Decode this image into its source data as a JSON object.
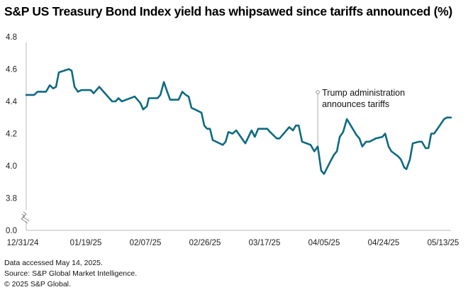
{
  "title": "S&P US Treasury Bond Index yield has whipsawed since tariffs announced (%)",
  "footer": {
    "line1": "Data accessed May 14, 2025.",
    "line2": "Source: S&P Global Market Intelligence.",
    "line3": "© 2025 S&P Global."
  },
  "chart_data": {
    "type": "line",
    "title": "S&P US Treasury Bond Index yield has whipsawed since tariffs announced (%)",
    "xlabel": "",
    "ylabel": "",
    "x_unit": "days since 12/31/24",
    "x_range": [
      0,
      135.5
    ],
    "ylim": [
      3.7,
      4.8
    ],
    "axis_break": true,
    "grid": false,
    "legend": "none",
    "y_ticks": [
      {
        "value": 4.8,
        "label": "4.8"
      },
      {
        "value": 4.6,
        "label": "4.6"
      },
      {
        "value": 4.4,
        "label": "4.4"
      },
      {
        "value": 4.2,
        "label": "4.2"
      },
      {
        "value": 4.0,
        "label": "4.0"
      },
      {
        "value": 3.8,
        "label": "3.8"
      },
      {
        "value": 3.7,
        "label": "0.0"
      }
    ],
    "x_ticks": [
      {
        "day": 0,
        "label": "12/31/24"
      },
      {
        "day": 19,
        "label": "01/19/25"
      },
      {
        "day": 38,
        "label": "02/07/25"
      },
      {
        "day": 57,
        "label": "02/26/25"
      },
      {
        "day": 76,
        "label": "03/17/25"
      },
      {
        "day": 95,
        "label": "04/05/25"
      },
      {
        "day": 114,
        "label": "04/24/25"
      },
      {
        "day": 133,
        "label": "05/13/25"
      }
    ],
    "series": [
      {
        "name": "S&P US Treasury Bond Index yield",
        "color": "#0e6a82",
        "x": [
          0,
          2.5,
          3.6,
          6.3,
          7.5,
          8.6,
          9.5,
          10.4,
          13.6,
          14.5,
          15.4,
          16.5,
          17.6,
          20.6,
          21.5,
          23.3,
          27.4,
          28.5,
          29.4,
          30.5,
          34.6,
          36.4,
          37.3,
          38.5,
          39.1,
          41.9,
          42.8,
          43.9,
          44.8,
          45.9,
          48.6,
          49.8,
          50.9,
          51.8,
          52.7,
          55.9,
          56.8,
          57.7,
          58.6,
          59.5,
          62.7,
          63.6,
          64.5,
          65.8,
          67.0,
          69.9,
          71.9,
          72.9,
          74.0,
          76.9,
          77.8,
          79.9,
          80.8,
          83.9,
          85.1,
          86.0,
          86.9,
          88.0,
          90.7,
          91.9,
          93.0,
          94.1,
          95.0,
          97.1,
          98.2,
          99.1,
          100.0,
          101.1,
          102.3,
          105.4,
          106.3,
          107.2,
          108.4,
          109.5,
          111.5,
          113.6,
          114.5,
          115.6,
          116.5,
          118.6,
          119.5,
          120.6,
          121.3,
          122.4,
          123.3,
          125.3,
          126.2,
          127.4,
          128.3,
          129.2,
          130.1,
          131.2,
          133.3,
          134.2,
          135.5
        ],
        "values": [
          4.44,
          4.44,
          4.46,
          4.46,
          4.5,
          4.48,
          4.49,
          4.58,
          4.6,
          4.59,
          4.49,
          4.46,
          4.47,
          4.47,
          4.45,
          4.49,
          4.4,
          4.4,
          4.42,
          4.4,
          4.43,
          4.39,
          4.35,
          4.37,
          4.42,
          4.42,
          4.44,
          4.52,
          4.47,
          4.41,
          4.41,
          4.46,
          4.44,
          4.43,
          4.36,
          4.33,
          4.25,
          4.23,
          4.23,
          4.16,
          4.13,
          4.15,
          4.21,
          4.2,
          4.22,
          4.14,
          4.22,
          4.18,
          4.23,
          4.23,
          4.21,
          4.17,
          4.17,
          4.24,
          4.22,
          4.25,
          4.25,
          4.15,
          4.13,
          4.09,
          4.12,
          3.97,
          3.95,
          4.03,
          4.07,
          4.09,
          4.18,
          4.21,
          4.29,
          4.19,
          4.17,
          4.12,
          4.15,
          4.15,
          4.17,
          4.18,
          4.2,
          4.12,
          4.09,
          4.06,
          4.04,
          3.99,
          3.98,
          4.04,
          4.14,
          4.15,
          4.15,
          4.11,
          4.11,
          4.2,
          4.2,
          4.23,
          4.29,
          4.3,
          4.3
        ]
      }
    ],
    "annotations": [
      {
        "day": 93.0,
        "text_line1": "Trump administration",
        "text_line2": "announces tariffs"
      }
    ],
    "colors": {
      "line": "#0e6a82",
      "axis": "#c8c8c8",
      "annotation_line": "#c8c8c8"
    }
  }
}
